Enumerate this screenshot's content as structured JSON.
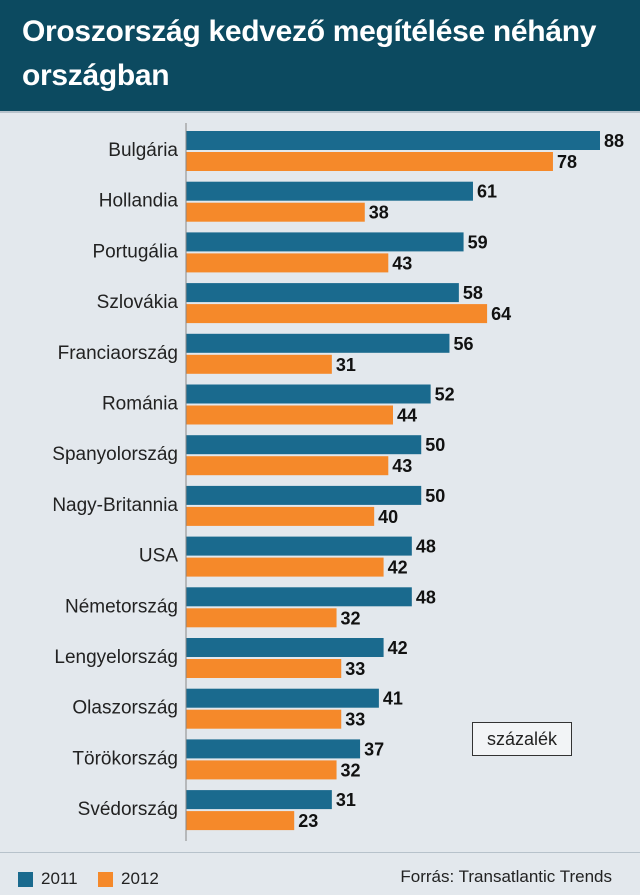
{
  "chart_data": {
    "type": "bar",
    "orientation": "horizontal",
    "title": "Oroszország kedvező megítélése néhány országban",
    "unit_label": "százalék",
    "source": "Forrás: Transatlantic Trends",
    "categories": [
      "Bulgária",
      "Hollandia",
      "Portugália",
      "Szlovákia",
      "Franciaország",
      "Románia",
      "Spanyolország",
      "Nagy-Britannia",
      "USA",
      "Németország",
      "Lengyelország",
      "Olaszország",
      "Törökország",
      "Svédország"
    ],
    "series": [
      {
        "name": "2011",
        "color": "#1a6a8e",
        "values": [
          88,
          61,
          59,
          58,
          56,
          52,
          50,
          50,
          48,
          48,
          42,
          41,
          37,
          31
        ]
      },
      {
        "name": "2012",
        "color": "#f5892a",
        "values": [
          78,
          38,
          43,
          64,
          31,
          44,
          43,
          40,
          42,
          32,
          33,
          33,
          32,
          23
        ]
      }
    ],
    "xlim": [
      0,
      88
    ],
    "legend_position": "bottom-left",
    "grid": false
  }
}
